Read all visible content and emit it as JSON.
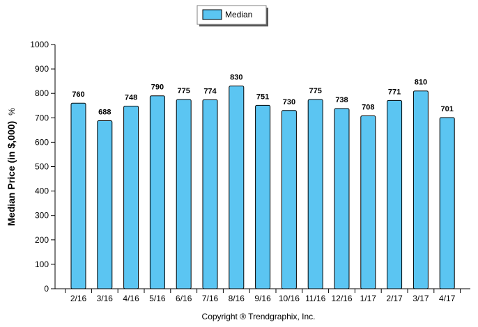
{
  "chart_data": {
    "type": "bar",
    "categories": [
      "2/16",
      "3/16",
      "4/16",
      "5/16",
      "6/16",
      "7/16",
      "8/16",
      "9/16",
      "10/16",
      "11/16",
      "12/16",
      "1/17",
      "2/17",
      "3/17",
      "4/17"
    ],
    "series": [
      {
        "name": "Median",
        "values": [
          760,
          688,
          748,
          790,
          775,
          774,
          830,
          751,
          730,
          775,
          738,
          708,
          771,
          810,
          701
        ],
        "color": "#5bc5f2"
      }
    ],
    "ylabel": "Median Price (in $,000)",
    "ylabel_suffix": "%",
    "ylim": [
      0,
      1000
    ],
    "yticks": [
      0,
      100,
      200,
      300,
      400,
      500,
      600,
      700,
      800,
      900,
      1000
    ],
    "grid": false,
    "legend_position": "top-center",
    "data_labels": true
  },
  "footer": {
    "copyright": "Copyright ® Trendgraphix, Inc."
  },
  "colors": {
    "bar_fill": "#5bc5f2",
    "bar_stroke": "#000000",
    "axis": "#000000"
  }
}
